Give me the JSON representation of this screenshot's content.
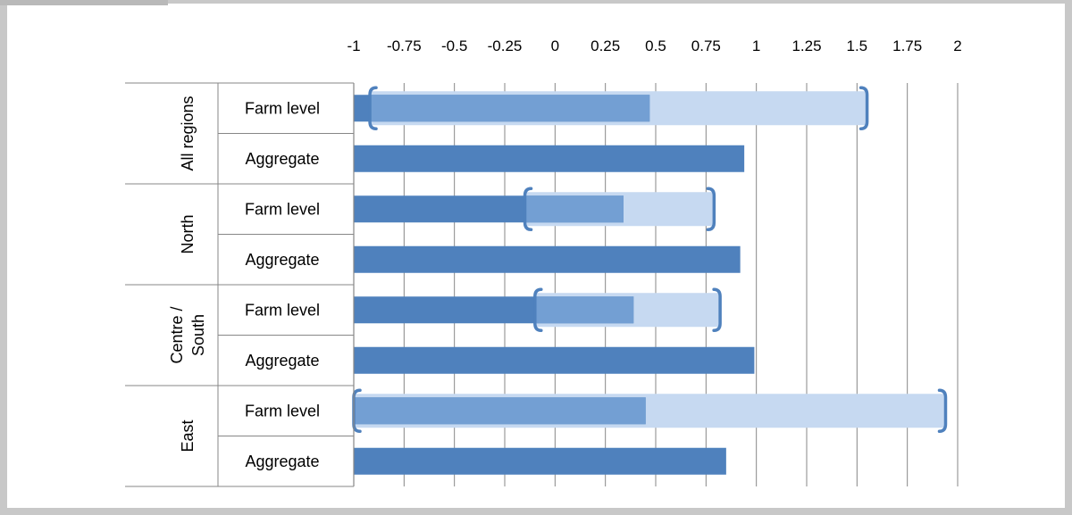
{
  "chart_data": {
    "type": "bar",
    "orientation": "horizontal",
    "title": "",
    "xlabel": "",
    "ylabel": "",
    "xlim": [
      -1,
      2
    ],
    "x_ticks": [
      "-1",
      "-0.75",
      "-0.5",
      "-0.25",
      "0",
      "0.25",
      "0.5",
      "0.75",
      "1",
      "1.25",
      "1.5",
      "1.75",
      "2"
    ],
    "x_tick_values": [
      -1,
      -0.75,
      -0.5,
      -0.25,
      0,
      0.25,
      0.5,
      0.75,
      1,
      1.25,
      1.5,
      1.75,
      2
    ],
    "grid": true,
    "legend": "none",
    "groups": [
      {
        "name": "All regions",
        "rows": [
          {
            "label": "Farm level",
            "value": 0.47,
            "range": [
              -0.92,
              1.55
            ]
          },
          {
            "label": "Aggregate",
            "value": 0.94
          }
        ]
      },
      {
        "name": "North",
        "rows": [
          {
            "label": "Farm level",
            "value": 0.34,
            "range": [
              -0.15,
              0.79
            ]
          },
          {
            "label": "Aggregate",
            "value": 0.92
          }
        ]
      },
      {
        "name": "Centre /\nSouth",
        "name_lines": [
          "Centre /",
          "South"
        ],
        "rows": [
          {
            "label": "Farm level",
            "value": 0.39,
            "range": [
              -0.1,
              0.82
            ]
          },
          {
            "label": "Aggregate",
            "value": 0.99
          }
        ]
      },
      {
        "name": "East",
        "rows": [
          {
            "label": "Farm level",
            "value": 0.45,
            "range": [
              -1.0,
              1.94
            ]
          },
          {
            "label": "Aggregate",
            "value": 0.85
          }
        ]
      }
    ],
    "colors": {
      "bar": "#4f81bd",
      "range_fill": "#c6d9f1",
      "range_bracket": "#4f81bd",
      "bar_overlap": "#739fd3",
      "grid": "#878787",
      "axis": "#878787"
    }
  }
}
